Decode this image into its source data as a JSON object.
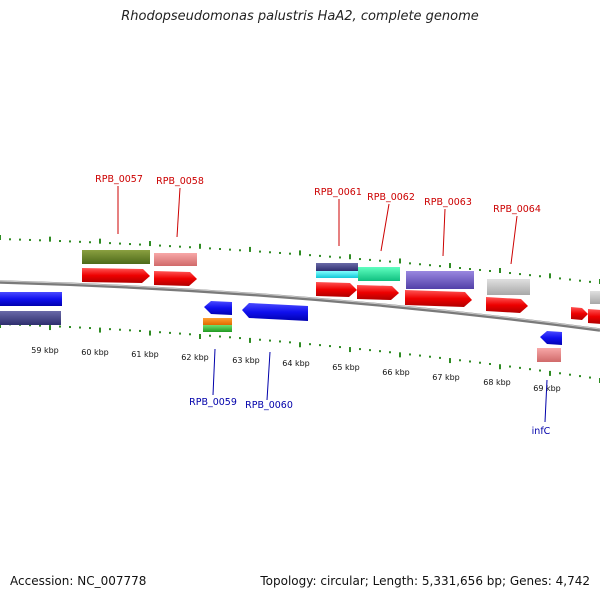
{
  "title": "Rhodopseudomonas palustris HaA2, complete genome",
  "footer": {
    "accession": "Accession: NC_007778",
    "summary": "Topology: circular; Length: 5,331,656 bp; Genes: 4,742"
  },
  "colors": {
    "backbone": "#8a8a8a",
    "tick": "#2e8b22",
    "label_forward": "#cc0000",
    "label_reverse": "#0000aa"
  },
  "kbp_labels": [
    "59 kbp",
    "60 kbp",
    "61 kbp",
    "62 kbp",
    "63 kbp",
    "64 kbp",
    "65 kbp",
    "66 kbp",
    "67 kbp",
    "68 kbp",
    "69 kbp"
  ],
  "forward_labels": [
    "RPB_0057",
    "RPB_0058",
    "RPB_0061",
    "RPB_0062",
    "RPB_0063",
    "RPB_0064"
  ],
  "reverse_labels": [
    "RPB_0059",
    "RPB_0060",
    "infC"
  ]
}
